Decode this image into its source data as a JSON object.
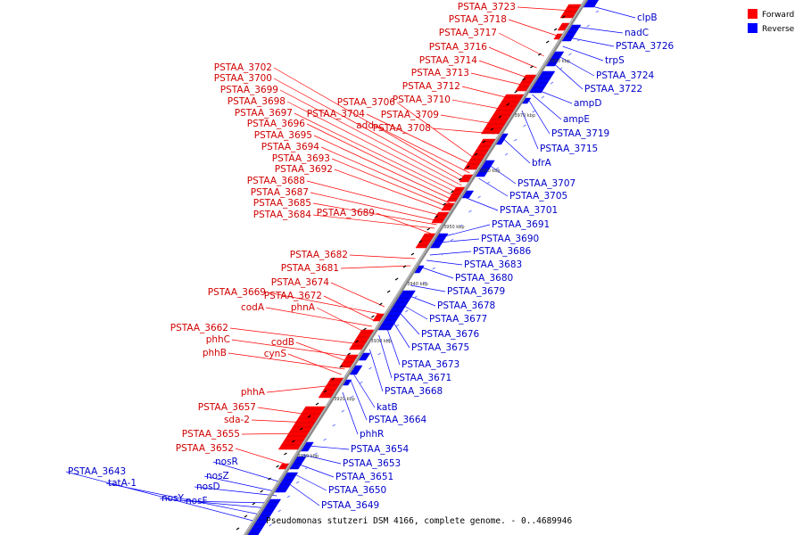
{
  "caption": "Pseudomonas stutzeri DSM 4166, complete genome. - 0..4689946",
  "legend": [
    {
      "label": "Forward",
      "color": "#ff0000"
    },
    {
      "label": "Reverse",
      "color": "#0000ff"
    }
  ],
  "colors": {
    "forward": "#ff0000",
    "reverse": "#0000ff",
    "backbone": "#888888"
  },
  "ticks": [
    "3910 kbp",
    "3920 kbp",
    "3930 kbp",
    "3940 kbp",
    "3950 kbp",
    "3960 kbp",
    "3970 kbp",
    "3980 kbp"
  ],
  "forward_genes": [
    "PSTAA_3723",
    "PSTAA_3718",
    "PSTAA_3717",
    "PSTAA_3716",
    "PSTAA_3714",
    "PSTAA_3713",
    "PSTAA_3712",
    "PSTAA_3710",
    "PSTAA_3709",
    "PSTAA_3708",
    "PSTAA_3706",
    "PSTAA_3704",
    "add",
    "PSTAA_3702",
    "PSTAA_3700",
    "PSTAA_3699",
    "PSTAA_3698",
    "PSTAA_3697",
    "PSTAA_3696",
    "PSTAA_3695",
    "PSTAA_3694",
    "PSTAA_3693",
    "PSTAA_3692",
    "PSTAA_3688",
    "PSTAA_3687",
    "PSTAA_3685",
    "PSTAA_3684",
    "PSTAA_3689",
    "PSTAA_3682",
    "PSTAA_3681",
    "PSTAA_3674",
    "PSTAA_3669",
    "PSTAA_3672",
    "codA",
    "phnA",
    "PSTAA_3662",
    "phhC",
    "codB",
    "phhB",
    "cynS",
    "phhA",
    "PSTAA_3657",
    "sda-2",
    "PSTAA_3655",
    "PSTAA_3652"
  ],
  "reverse_genes": [
    "clpB",
    "nadC",
    "PSTAA_3726",
    "trpS",
    "PSTAA_3724",
    "PSTAA_3722",
    "ampD",
    "ampE",
    "PSTAA_3719",
    "PSTAA_3715",
    "bfrA",
    "PSTAA_3707",
    "PSTAA_3705",
    "PSTAA_3701",
    "PSTAA_3691",
    "PSTAA_3690",
    "PSTAA_3686",
    "PSTAA_3683",
    "PSTAA_3680",
    "PSTAA_3679",
    "PSTAA_3678",
    "PSTAA_3677",
    "PSTAA_3676",
    "PSTAA_3675",
    "PSTAA_3673",
    "PSTAA_3671",
    "PSTAA_3668",
    "katB",
    "PSTAA_3664",
    "phhR",
    "PSTAA_3654",
    "PSTAA_3653",
    "PSTAA_3651",
    "PSTAA_3650",
    "PSTAA_3649",
    "nosR",
    "nosZ",
    "nosD",
    "nosF",
    "nosY",
    "tatA-1",
    "PSTAA_3643"
  ]
}
